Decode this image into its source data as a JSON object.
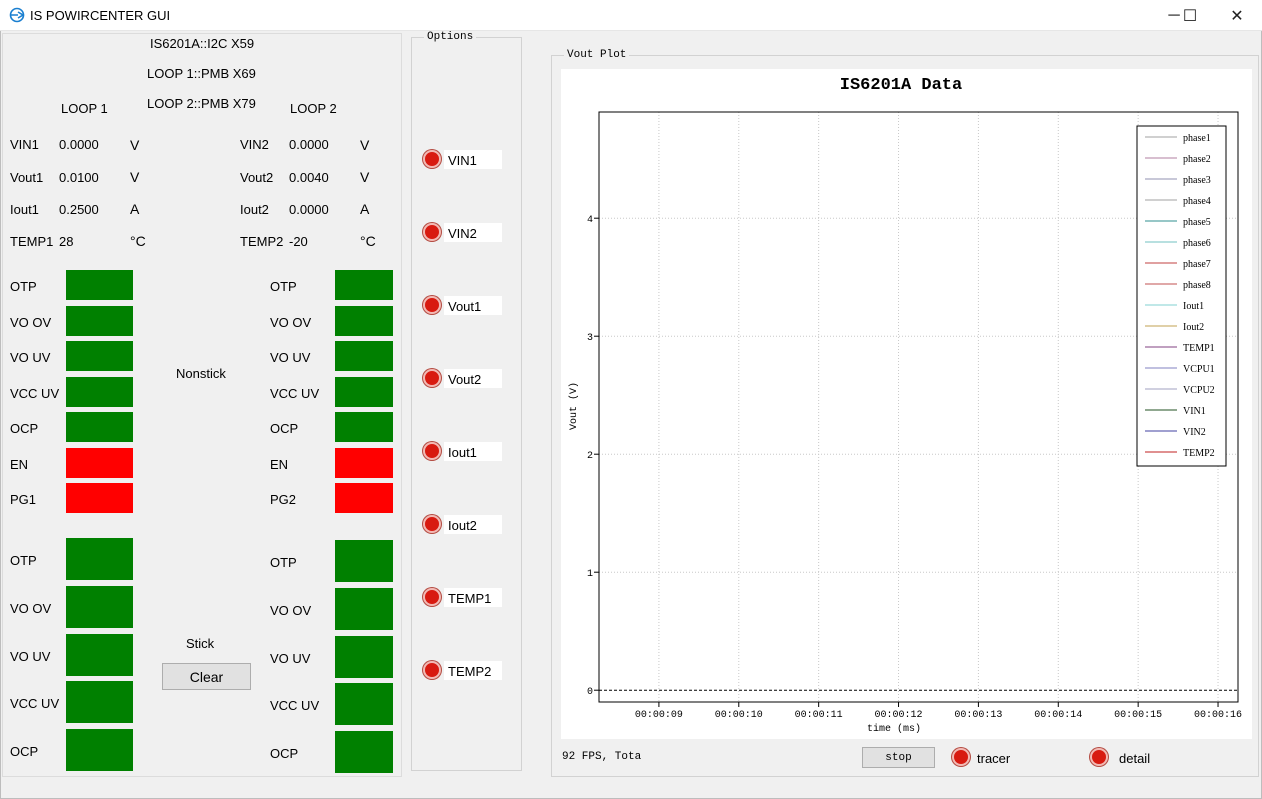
{
  "window": {
    "title": "IS POWIRCENTER GUI",
    "minimize_glyph": "─",
    "maximize_glyph": "☐",
    "close_glyph": "✕"
  },
  "left_panel": {
    "chip_info": "IS6201A::I2C X59",
    "loop1_info": "LOOP 1::PMB X69",
    "loop2_info": "LOOP 2::PMB X79",
    "loop1_title": "LOOP 1",
    "loop2_title": "LOOP 2",
    "loop1": {
      "readings": [
        {
          "label": "VIN1",
          "value": "0.0000",
          "unit": "V"
        },
        {
          "label": "Vout1",
          "value": "0.0100",
          "unit": "V"
        },
        {
          "label": "Iout1",
          "value": "0.2500",
          "unit": "A"
        },
        {
          "label": "TEMP1",
          "value": "28",
          "unit": "°C"
        }
      ]
    },
    "loop2": {
      "readings": [
        {
          "label": "VIN2",
          "value": "0.0000",
          "unit": "V"
        },
        {
          "label": "Vout2",
          "value": "0.0040",
          "unit": "V"
        },
        {
          "label": "Iout2",
          "value": "0.0000",
          "unit": "A"
        },
        {
          "label": "TEMP2",
          "value": "-20",
          "unit": "°C"
        }
      ]
    },
    "nonstick_label": "Nonstick",
    "stick_label": "Stick",
    "clear_label": "Clear",
    "nonstick_flags_loop1": [
      {
        "label": "OTP",
        "state": "ok"
      },
      {
        "label": "VO OV",
        "state": "ok"
      },
      {
        "label": "VO UV",
        "state": "ok"
      },
      {
        "label": "VCC UV",
        "state": "ok"
      },
      {
        "label": "OCP",
        "state": "ok"
      },
      {
        "label": "EN",
        "state": "fault"
      },
      {
        "label": "PG1",
        "state": "fault"
      }
    ],
    "nonstick_flags_loop2": [
      {
        "label": "OTP",
        "state": "ok"
      },
      {
        "label": "VO OV",
        "state": "ok"
      },
      {
        "label": "VO UV",
        "state": "ok"
      },
      {
        "label": "VCC UV",
        "state": "ok"
      },
      {
        "label": "OCP",
        "state": "ok"
      },
      {
        "label": "EN",
        "state": "fault"
      },
      {
        "label": "PG2",
        "state": "fault"
      }
    ],
    "stick_flags_loop1": [
      {
        "label": "OTP",
        "state": "ok"
      },
      {
        "label": "VO OV",
        "state": "ok"
      },
      {
        "label": "VO UV",
        "state": "ok"
      },
      {
        "label": "VCC UV",
        "state": "ok"
      },
      {
        "label": "OCP",
        "state": "ok"
      }
    ],
    "stick_flags_loop2": [
      {
        "label": "OTP",
        "state": "ok"
      },
      {
        "label": "VO OV",
        "state": "ok"
      },
      {
        "label": "VO UV",
        "state": "ok"
      },
      {
        "label": "VCC UV",
        "state": "ok"
      },
      {
        "label": "OCP",
        "state": "ok"
      }
    ],
    "colors": {
      "ok": "#008000",
      "fault": "#ff0000"
    }
  },
  "options": {
    "title": "Options",
    "items": [
      "VIN1",
      "VIN2",
      "Vout1",
      "Vout2",
      "Iout1",
      "Iout2",
      "TEMP1",
      "TEMP2"
    ]
  },
  "plot_panel": {
    "title": "Vout Plot",
    "status": "92 FPS, Tota",
    "stop_label": "stop",
    "tracer_label": "tracer",
    "detail_label": "detail"
  },
  "chart_data": {
    "type": "line",
    "title": "IS6201A Data",
    "xlabel": "time (ms)",
    "ylabel": "Vout (V)",
    "x_ticks": [
      "00:00:09",
      "00:00:10",
      "00:00:11",
      "00:00:12",
      "00:00:13",
      "00:00:14",
      "00:00:15",
      "00:00:16"
    ],
    "y_ticks": [
      0,
      1,
      2,
      3,
      4
    ],
    "ylim": [
      -0.1,
      4.9
    ],
    "xlim": [
      "00:00:08.25",
      "00:00:16.25"
    ],
    "grid": true,
    "legend_position": "top-right",
    "series": [
      {
        "name": "phase1",
        "color": "#a0a0a0",
        "values": []
      },
      {
        "name": "phase2",
        "color": "#b07fa0",
        "values": []
      },
      {
        "name": "phase3",
        "color": "#9090b0",
        "values": []
      },
      {
        "name": "phase4",
        "color": "#a0a0a0",
        "values": []
      },
      {
        "name": "phase5",
        "color": "#2f8f8f",
        "values": []
      },
      {
        "name": "phase6",
        "color": "#70c0c0",
        "values": []
      },
      {
        "name": "phase7",
        "color": "#c04040",
        "values": []
      },
      {
        "name": "phase8",
        "color": "#c05050",
        "values": []
      },
      {
        "name": "Iout1",
        "color": "#80d0d0",
        "values": []
      },
      {
        "name": "Iout2",
        "color": "#c0a050",
        "values": []
      },
      {
        "name": "TEMP1",
        "color": "#804080",
        "values": []
      },
      {
        "name": "VCPU1",
        "color": "#8080c0",
        "values": []
      },
      {
        "name": "VCPU2",
        "color": "#a0a0c0",
        "values": []
      },
      {
        "name": "VIN1",
        "color": "#205020",
        "values": []
      },
      {
        "name": "VIN2",
        "color": "#4040a0",
        "values": []
      },
      {
        "name": "TEMP2",
        "color": "#c02020",
        "values": []
      }
    ],
    "baseline_value": 0
  }
}
